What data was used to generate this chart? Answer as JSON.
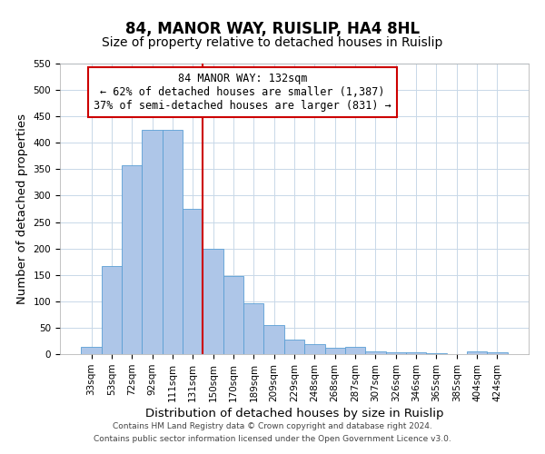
{
  "title": "84, MANOR WAY, RUISLIP, HA4 8HL",
  "subtitle": "Size of property relative to detached houses in Ruislip",
  "xlabel": "Distribution of detached houses by size in Ruislip",
  "ylabel": "Number of detached properties",
  "bar_labels": [
    "33sqm",
    "53sqm",
    "72sqm",
    "92sqm",
    "111sqm",
    "131sqm",
    "150sqm",
    "170sqm",
    "189sqm",
    "209sqm",
    "229sqm",
    "248sqm",
    "268sqm",
    "287sqm",
    "307sqm",
    "326sqm",
    "346sqm",
    "365sqm",
    "385sqm",
    "404sqm",
    "424sqm"
  ],
  "bar_values": [
    13,
    167,
    357,
    425,
    425,
    275,
    200,
    148,
    97,
    55,
    27,
    19,
    12,
    14,
    6,
    4,
    4,
    1,
    0,
    5,
    3
  ],
  "bar_color": "#aec6e8",
  "bar_edge_color": "#5a9fd4",
  "vline_x_idx": 5,
  "vline_color": "#cc0000",
  "ylim": [
    0,
    550
  ],
  "yticks": [
    0,
    50,
    100,
    150,
    200,
    250,
    300,
    350,
    400,
    450,
    500,
    550
  ],
  "annotation_title": "84 MANOR WAY: 132sqm",
  "annotation_line1": "← 62% of detached houses are smaller (1,387)",
  "annotation_line2": "37% of semi-detached houses are larger (831) →",
  "annotation_box_color": "#cc0000",
  "footer_line1": "Contains HM Land Registry data © Crown copyright and database right 2024.",
  "footer_line2": "Contains public sector information licensed under the Open Government Licence v3.0.",
  "title_fontsize": 12,
  "subtitle_fontsize": 10,
  "axis_label_fontsize": 9.5,
  "tick_fontsize": 7.5,
  "annotation_fontsize": 8.5,
  "footer_fontsize": 6.5
}
